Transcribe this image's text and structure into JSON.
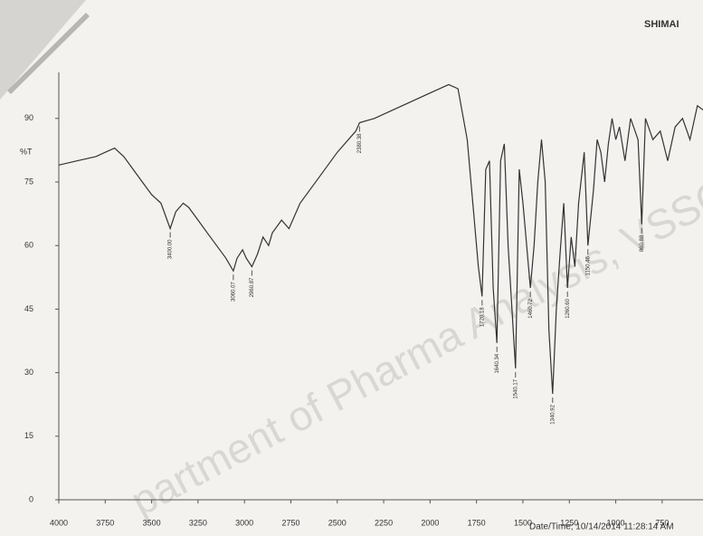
{
  "chart_data": {
    "type": "line",
    "brand": "SHIMAI",
    "y_label": "%T",
    "watermark": "partment of Pharma Analysis, VSSCP, Oot",
    "footer": "Date/Time; 10/14/2014 11:28:14 AM",
    "x": [
      4000,
      3900,
      3800,
      3750,
      3700,
      3650,
      3600,
      3550,
      3500,
      3450,
      3400,
      3370,
      3330,
      3300,
      3250,
      3200,
      3150,
      3100,
      3060,
      3040,
      3010,
      2990,
      2960,
      2930,
      2900,
      2870,
      2850,
      2800,
      2760,
      2700,
      2600,
      2500,
      2400,
      2380,
      2300,
      2200,
      2100,
      2000,
      1900,
      1850,
      1800,
      1770,
      1740,
      1720,
      1700,
      1680,
      1660,
      1640,
      1620,
      1600,
      1580,
      1540,
      1520,
      1500,
      1480,
      1460,
      1440,
      1420,
      1400,
      1380,
      1360,
      1340,
      1320,
      1300,
      1280,
      1260,
      1240,
      1220,
      1200,
      1170,
      1150,
      1120,
      1100,
      1080,
      1060,
      1040,
      1020,
      1000,
      980,
      950,
      920,
      880,
      860,
      840,
      800,
      760,
      720,
      680,
      640,
      600,
      560,
      530
    ],
    "series": [
      {
        "name": "%T",
        "color": "#333333",
        "values": [
          79,
          80,
          81,
          82,
          83,
          81,
          78,
          75,
          72,
          70,
          64,
          68,
          70,
          69,
          66,
          63,
          60,
          57,
          54,
          57,
          59,
          57,
          55,
          58,
          62,
          60,
          63,
          66,
          64,
          70,
          76,
          82,
          87,
          89,
          90,
          92,
          94,
          96,
          98,
          97,
          85,
          70,
          55,
          48,
          78,
          80,
          50,
          37,
          80,
          84,
          60,
          31,
          78,
          70,
          60,
          50,
          60,
          75,
          85,
          75,
          40,
          25,
          45,
          58,
          70,
          50,
          62,
          55,
          70,
          82,
          60,
          73,
          85,
          82,
          75,
          84,
          90,
          85,
          88,
          80,
          90,
          85,
          65,
          90,
          85,
          87,
          80,
          88,
          90,
          85,
          93,
          92
        ]
      }
    ],
    "peaks": [
      3400,
      3060,
      2960,
      2380,
      1720,
      1640,
      1540,
      1460,
      1340,
      1260,
      1150,
      860
    ],
    "peak_labels": [
      "3400.00",
      "3060.07",
      "2960.87",
      "2380.38",
      "1720.18",
      "1640.34",
      "1540.17",
      "1460.72",
      "1340.92",
      "1260.60",
      "1150.46",
      "860.88"
    ],
    "xlim": [
      4000,
      530
    ],
    "xticks": [
      4000,
      3750,
      3500,
      3250,
      3000,
      2750,
      2500,
      2250,
      2000,
      1750,
      1500,
      1250,
      1000,
      750
    ],
    "ylim": [
      0,
      100
    ],
    "yticks": [
      0,
      15,
      30,
      45,
      60,
      75,
      90
    ]
  }
}
